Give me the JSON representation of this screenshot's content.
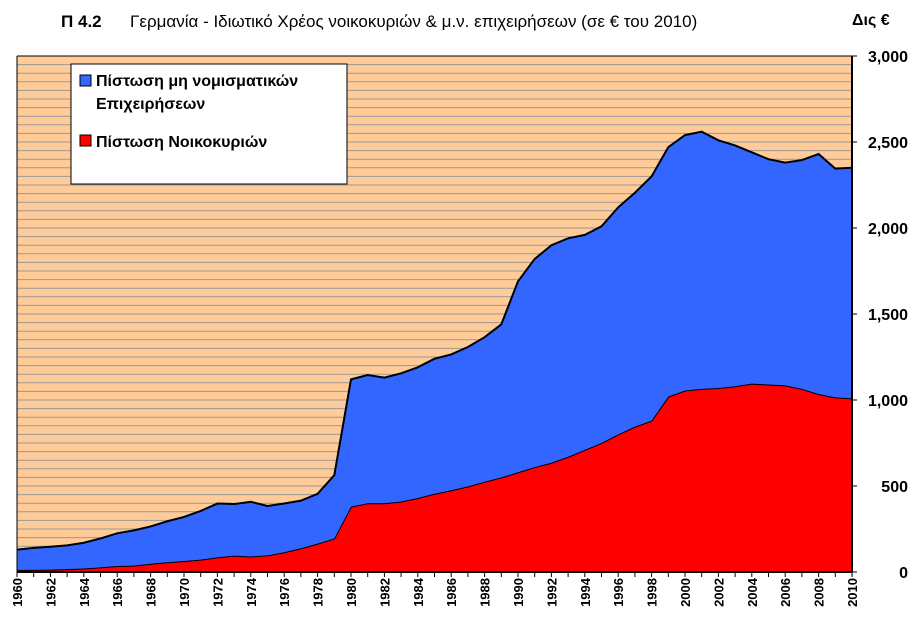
{
  "header": {
    "number": "Π 4.2",
    "title": "Γερμανία - Ιδιωτικό Χρέος νοικοκυριών & μ.ν. επιχειρήσεων (σε € του 2010)",
    "unit": "Δις €"
  },
  "colors": {
    "plot_background": "#FFCC99",
    "gridline": "#999999",
    "business_series": "#3366FF",
    "household_series": "#FF0000",
    "outline": "#000000"
  },
  "chart_data": {
    "type": "area",
    "stacked": true,
    "x": [
      1960,
      1961,
      1962,
      1963,
      1964,
      1965,
      1966,
      1967,
      1968,
      1969,
      1970,
      1971,
      1972,
      1973,
      1974,
      1975,
      1976,
      1977,
      1978,
      1979,
      1980,
      1981,
      1982,
      1983,
      1984,
      1985,
      1986,
      1987,
      1988,
      1989,
      1990,
      1991,
      1992,
      1993,
      1994,
      1995,
      1996,
      1997,
      1998,
      1999,
      2000,
      2001,
      2002,
      2003,
      2004,
      2005,
      2006,
      2007,
      2008,
      2009,
      2010
    ],
    "x_tick_labels": [
      "1960",
      "1962",
      "1964",
      "1966",
      "1968",
      "1970",
      "1972",
      "1974",
      "1976",
      "1978",
      "1980",
      "1982",
      "1984",
      "1986",
      "1988",
      "1990",
      "1992",
      "1994",
      "1996",
      "1998",
      "2000",
      "2002",
      "2004",
      "2006",
      "2008",
      "2010"
    ],
    "y_ticks": [
      0,
      500,
      1000,
      1500,
      2000,
      2500,
      3000
    ],
    "y_tick_labels": [
      "0",
      "500",
      "1,000",
      "1,500",
      "2,000",
      "2,500",
      "3,000"
    ],
    "ylim": [
      0,
      3000
    ],
    "ylabel": "Δις €",
    "y_axis_position": "right",
    "grid_step": 50,
    "legend_position": "top-left",
    "series": [
      {
        "name": "Πίστωση Νοικοκυριών",
        "color": "#FF0000",
        "values": [
          12,
          12,
          14,
          17,
          20,
          27,
          35,
          37,
          48,
          57,
          64,
          72,
          85,
          95,
          90,
          97,
          115,
          138,
          165,
          195,
          380,
          400,
          400,
          410,
          430,
          455,
          475,
          498,
          525,
          550,
          580,
          610,
          635,
          670,
          710,
          750,
          800,
          845,
          880,
          1020,
          1055,
          1065,
          1070,
          1080,
          1095,
          1090,
          1085,
          1065,
          1035,
          1015,
          1010
        ]
      },
      {
        "name": "Πίστωση μη νομισματικών Επιχειρήσεων",
        "legend_lines": [
          "Πίστωση μη νομισματικών",
          "Επιχειρήσεων"
        ],
        "color": "#3366FF",
        "values": [
          118,
          128,
          133,
          138,
          150,
          168,
          190,
          205,
          217,
          238,
          256,
          283,
          313,
          300,
          318,
          287,
          283,
          277,
          290,
          368,
          740,
          745,
          730,
          745,
          760,
          785,
          790,
          810,
          840,
          890,
          1110,
          1210,
          1265,
          1270,
          1250,
          1260,
          1320,
          1360,
          1420,
          1450,
          1485,
          1495,
          1440,
          1400,
          1345,
          1310,
          1295,
          1330,
          1395,
          1330,
          1340
        ]
      }
    ]
  }
}
